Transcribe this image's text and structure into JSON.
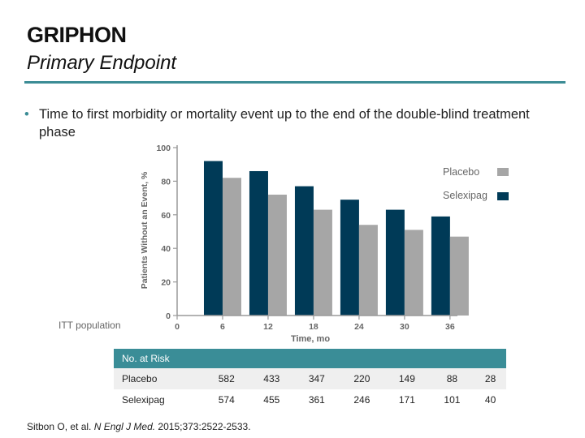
{
  "header": {
    "title": "GRIPHON",
    "subtitle": "Primary Endpoint"
  },
  "bullet": {
    "text": "Time to first morbidity or mortality event up to the end of the double-blind treatment phase"
  },
  "colors": {
    "accent": "#3b8c95",
    "selexipag": "#003a57",
    "placebo": "#a6a6a6"
  },
  "chart_data": {
    "type": "bar",
    "title": "",
    "xlabel": "Time, mo",
    "ylabel": "Patients Without an Event, %",
    "x_ticks": [
      "0",
      "6",
      "12",
      "18",
      "24",
      "30",
      "36"
    ],
    "categories": [
      "6",
      "12",
      "18",
      "24",
      "30",
      "36"
    ],
    "yticks": [
      "0",
      "20",
      "40",
      "60",
      "80",
      "100"
    ],
    "ylim": [
      0,
      100
    ],
    "series": [
      {
        "name": "Selexipag",
        "values": [
          92,
          86,
          77,
          69,
          63,
          59
        ]
      },
      {
        "name": "Placebo",
        "values": [
          82,
          72,
          63,
          54,
          51,
          47
        ]
      }
    ],
    "legend": [
      "Placebo",
      "Selexipag"
    ],
    "annotation": "ITT population"
  },
  "risk_table": {
    "header": "No. at Risk",
    "rows": [
      {
        "label": "Placebo",
        "values": [
          "582",
          "433",
          "347",
          "220",
          "149",
          "88",
          "28"
        ]
      },
      {
        "label": "Selexipag",
        "values": [
          "574",
          "455",
          "361",
          "246",
          "171",
          "101",
          "40"
        ]
      }
    ]
  },
  "citation": {
    "authors": "Sitbon O, et al. ",
    "journal": "N Engl J Med.",
    "details": " 2015;373:2522-2533."
  }
}
